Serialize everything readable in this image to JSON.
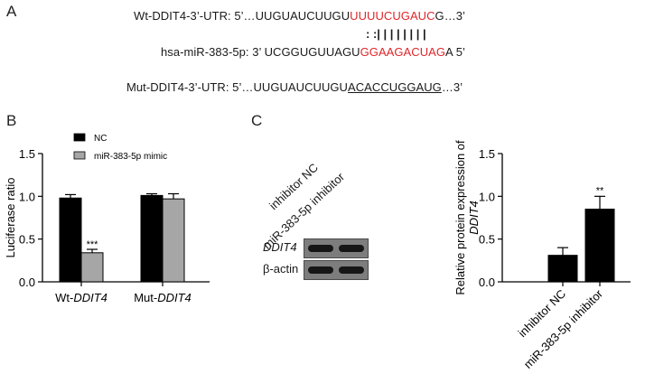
{
  "panel_a": {
    "letter": "A",
    "wt": {
      "label": "Wt-DDIT4-3’-UTR: 5’…UUGUAUCUUGU",
      "red": "UUUUCUGAUC",
      "tail": "G…3’"
    },
    "pairing": ": :| | | | | | | |",
    "mir": {
      "label": "hsa-miR-383-5p: 3’ UCGGUGUUAGU",
      "red": "GGAAGACUAG",
      "tail": "A 5’"
    },
    "mut": {
      "label": "Mut-DDIT4-3’-UTR: 5’…UUGUAUCUUGU",
      "underlined": "ACACCUGGAUG",
      "tail": "…3’"
    }
  },
  "panel_b": {
    "letter": "B",
    "legend": [
      "NC",
      "miR-383-5p mimic"
    ],
    "significance": "***"
  },
  "panel_c": {
    "letter": "C",
    "lanes": [
      "inhibitor NC",
      "miR-383-5p inhibitor"
    ],
    "blot_rows": [
      "DDIT4",
      "β-actin"
    ],
    "significance": "**"
  },
  "chart_data": [
    {
      "type": "bar",
      "panel": "B",
      "categories": [
        "Wt-DDIT4",
        "Mut-DDIT4"
      ],
      "series": [
        {
          "name": "NC",
          "values": [
            0.98,
            1.01
          ],
          "errors": [
            0.04,
            0.02
          ],
          "color": "#000000"
        },
        {
          "name": "miR-383-5p mimic",
          "values": [
            0.34,
            0.97
          ],
          "errors": [
            0.04,
            0.06
          ],
          "color": "#a6a6a6"
        }
      ],
      "ylabel": "Luciferase ratio",
      "ylim": [
        0,
        1.5
      ],
      "yticks": [
        "0.0",
        "0.5",
        "1.0",
        "1.5"
      ],
      "legend": "top-left",
      "grid": false
    },
    {
      "type": "bar",
      "panel": "C",
      "categories": [
        "inhibitor NC",
        "miR-383-5p inhibitor"
      ],
      "values": [
        0.31,
        0.85
      ],
      "errors": [
        0.09,
        0.15
      ],
      "color": "#000000",
      "ylabel_prefix": "Relative protein expression of",
      "ylabel_gene": "DDIT4",
      "ylim": [
        0,
        1.5
      ],
      "yticks": [
        "0.0",
        "0.5",
        "1.0",
        "1.5"
      ],
      "grid": false
    }
  ]
}
